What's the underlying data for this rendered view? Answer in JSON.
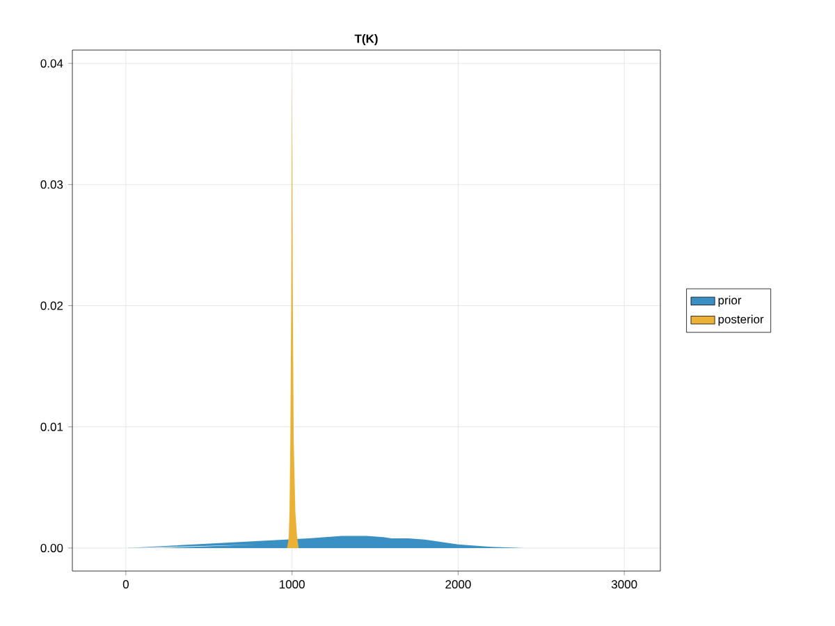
{
  "chart_data": {
    "type": "area",
    "title": "T(K)",
    "xlim": [
      -322,
      3217
    ],
    "ylim": [
      -0.0019,
      0.0411
    ],
    "xticks": [
      0,
      1000,
      2000,
      3000
    ],
    "yticks": [
      {
        "value": 0,
        "label": "0.00"
      },
      {
        "value": 0.01,
        "label": "0.01"
      },
      {
        "value": 0.02,
        "label": "0.02"
      },
      {
        "value": 0.03,
        "label": "0.03"
      },
      {
        "value": 0.04,
        "label": "0.04"
      }
    ],
    "grid": true,
    "legend": "right",
    "series": [
      {
        "name": "prior",
        "color": "#3a8fc3",
        "x": [
          0,
          200,
          400,
          600,
          800,
          1000,
          1100,
          1200,
          1300,
          1400,
          1450,
          1550,
          1600,
          1700,
          1800,
          1900,
          2000,
          2200,
          2400,
          2600,
          3000
        ],
        "values": [
          0,
          0,
          0.0001,
          0.0002,
          0.0003,
          null,
          0.0008,
          0.0009,
          0.001,
          0.001,
          0.001,
          0.0009,
          0.0008,
          0.0008,
          0.0007,
          0.0005,
          0.0003,
          0.0001,
          0,
          0,
          0
        ]
      },
      {
        "name": "posterior",
        "color": "#ebb134",
        "x": [
          970,
          980,
          985,
          990,
          995,
          1000,
          1005,
          1010,
          1020,
          1030,
          1040
        ],
        "values": [
          0,
          0.0008,
          0.003,
          0.009,
          0.02,
          0.0395,
          0.02,
          0.009,
          0.003,
          0.001,
          0
        ]
      }
    ]
  }
}
